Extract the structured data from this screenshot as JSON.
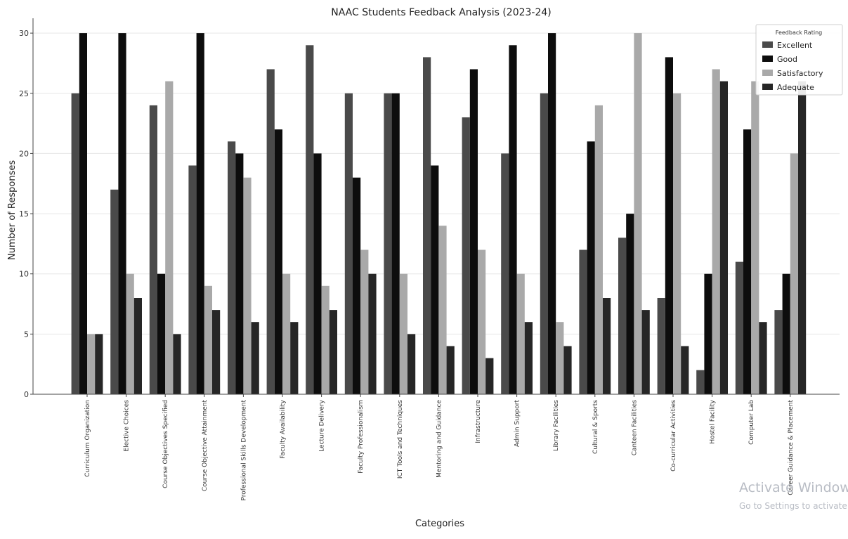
{
  "chart_data": {
    "type": "bar",
    "title": "NAAC Students Feedback Analysis (2023-24)",
    "xlabel": "Categories",
    "ylabel": "Number of Responses",
    "ylim": [
      0,
      31
    ],
    "yticks": [
      0,
      5,
      10,
      15,
      20,
      25,
      30
    ],
    "grid": true,
    "legend": {
      "title": "Feedback Rating",
      "placement": "top-right"
    },
    "categories": [
      "Curriculum Organization",
      "Elective Choices",
      "Course Objectives Specified",
      "Course Objective Attainment",
      "Professional Skills Development",
      "Faculty Availability",
      "Lecture Delivery",
      "Faculty Professionalism",
      "ICT Tools and Techniques",
      "Mentoring and Guidance",
      "Infrastructure",
      "Admin Support",
      "Library Facilities",
      "Cultural & Sports",
      "Canteen Facilities",
      "Co-curricular Activities",
      "Hostel Facility",
      "Computer Lab",
      "Career Guidance & Placement"
    ],
    "series": [
      {
        "name": "Excellent",
        "color": "#4a4a4a",
        "values": [
          25,
          17,
          24,
          19,
          21,
          27,
          29,
          25,
          25,
          28,
          23,
          20,
          25,
          12,
          13,
          8,
          2,
          11,
          7
        ]
      },
      {
        "name": "Good",
        "color": "#0d0d0d",
        "values": [
          30,
          30,
          10,
          30,
          20,
          22,
          20,
          18,
          25,
          19,
          27,
          29,
          30,
          21,
          15,
          28,
          10,
          22,
          10
        ]
      },
      {
        "name": "Satisfactory",
        "color": "#a9a9a9",
        "values": [
          5,
          10,
          26,
          9,
          18,
          10,
          9,
          12,
          10,
          14,
          12,
          10,
          6,
          24,
          30,
          25,
          27,
          26,
          20
        ]
      },
      {
        "name": "Adequate",
        "color": "#262626",
        "values": [
          5,
          8,
          5,
          7,
          6,
          6,
          7,
          10,
          5,
          4,
          3,
          6,
          4,
          8,
          7,
          4,
          26,
          6,
          26
        ]
      }
    ]
  },
  "overlay": {
    "line1": "Activate Windows",
    "line2": "Go to Settings to activate Windows."
  }
}
